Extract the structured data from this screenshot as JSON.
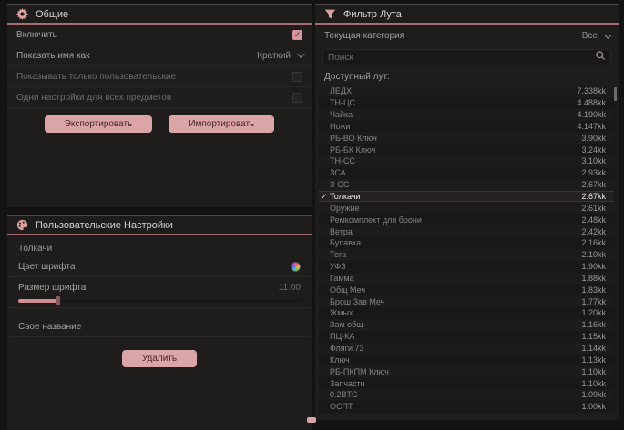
{
  "icons": {
    "check_glyph": "✓"
  },
  "general": {
    "title": "Общие",
    "rows": [
      {
        "label": "Включить",
        "type": "checkbox",
        "checked": true,
        "dim": false
      },
      {
        "label": "Показать имя как",
        "type": "select",
        "value": "Краткий",
        "dim": false
      },
      {
        "label": "Показывать только пользовательские",
        "type": "checkbox",
        "checked": false,
        "dim": true
      },
      {
        "label": "Одни настройки для всех предметов",
        "type": "checkbox",
        "checked": false,
        "dim": true
      }
    ],
    "export_label": "Экспортировать",
    "import_label": "Импортировать"
  },
  "custom": {
    "title": "Пользовательские Настройки",
    "item_name": "Толкачи",
    "font_color_label": "Цвет шрифта",
    "font_size_label": "Размер шрифта",
    "font_size_value": "11.00",
    "custom_name_label": "Свое название",
    "custom_name_value": "",
    "delete_label": "Удалить"
  },
  "loot": {
    "title": "Фильтр Лута",
    "category_label": "Текущая категория",
    "category_value": "Все",
    "search_placeholder": "Поиск",
    "available_label": "Доступный лут:",
    "items": [
      {
        "name": "ЛЕДХ",
        "value": "7.338kk",
        "checked": false
      },
      {
        "name": "ТН-ЦС",
        "value": "4.488kk",
        "checked": false
      },
      {
        "name": "Чайка",
        "value": "4.190kk",
        "checked": false
      },
      {
        "name": "Ножи",
        "value": "4.147kk",
        "checked": false
      },
      {
        "name": "РБ-ВО Ключ",
        "value": "3.90kk",
        "checked": false
      },
      {
        "name": "РБ-БК Ключ",
        "value": "3.24kk",
        "checked": false
      },
      {
        "name": "ТН-СС",
        "value": "3.10kk",
        "checked": false
      },
      {
        "name": "ЗСА",
        "value": "2.93kk",
        "checked": false
      },
      {
        "name": "З-СС",
        "value": "2.67kk",
        "checked": false
      },
      {
        "name": "Толкачи",
        "value": "2.67kk",
        "checked": true
      },
      {
        "name": "Оружие",
        "value": "2.61kk",
        "checked": false
      },
      {
        "name": "Ремкомплект для брони",
        "value": "2.48kk",
        "checked": false
      },
      {
        "name": "Ветра",
        "value": "2.42kk",
        "checked": false
      },
      {
        "name": "Булавка",
        "value": "2.16kk",
        "checked": false
      },
      {
        "name": "Тега",
        "value": "2.10kk",
        "checked": false
      },
      {
        "name": "УФЗ",
        "value": "1.90kk",
        "checked": false
      },
      {
        "name": "Гамма",
        "value": "1.88kk",
        "checked": false
      },
      {
        "name": "Общ Меч",
        "value": "1.83kk",
        "checked": false
      },
      {
        "name": "Брош Зав Меч",
        "value": "1.77kk",
        "checked": false
      },
      {
        "name": "Жмых",
        "value": "1.20kk",
        "checked": false
      },
      {
        "name": "Зам общ",
        "value": "1.16kk",
        "checked": false
      },
      {
        "name": "ПЦ-КА",
        "value": "1.15kk",
        "checked": false
      },
      {
        "name": "Фляги 73",
        "value": "1.14kk",
        "checked": false
      },
      {
        "name": "Ключ",
        "value": "1.13kk",
        "checked": false
      },
      {
        "name": "РБ-ПКПМ Ключ",
        "value": "1.10kk",
        "checked": false
      },
      {
        "name": "Запчасти",
        "value": "1.10kk",
        "checked": false
      },
      {
        "name": "0.2BTC",
        "value": "1.09kk",
        "checked": false
      },
      {
        "name": "ОСПТ",
        "value": "1.00kk",
        "checked": false
      }
    ]
  },
  "colors": {
    "accent": "#dba0a3",
    "divider": "#a96e73",
    "button_bg": "#dba4a6",
    "checkbox_checked": "#d5969b"
  }
}
